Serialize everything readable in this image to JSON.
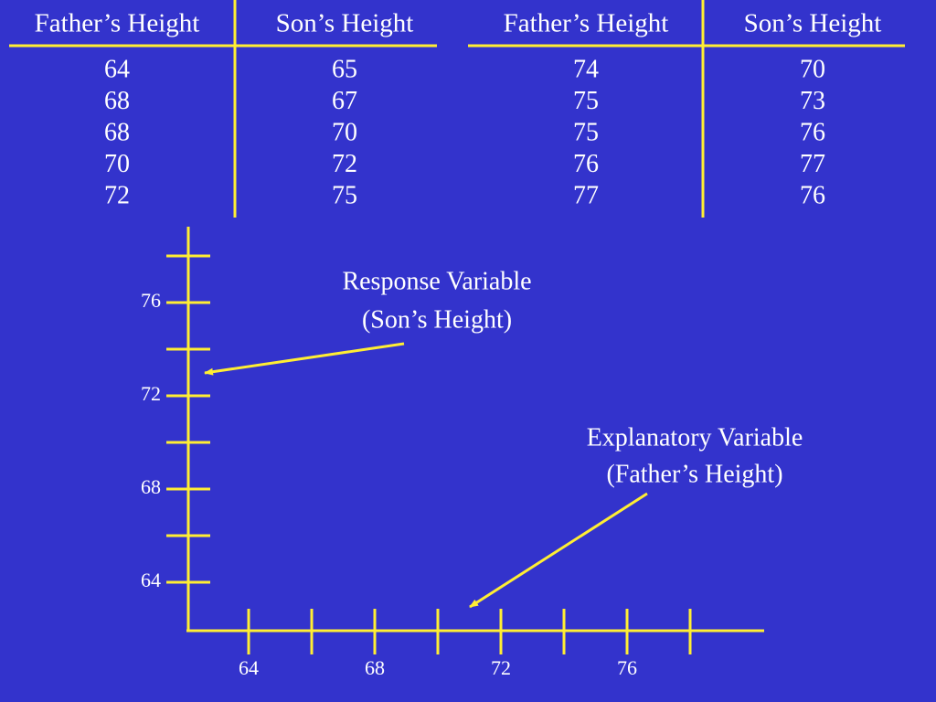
{
  "tables": [
    {
      "headers": [
        "Father’s Height",
        "Son’s Height"
      ],
      "rows": [
        [
          "64",
          "65"
        ],
        [
          "68",
          "67"
        ],
        [
          "68",
          "70"
        ],
        [
          "70",
          "72"
        ],
        [
          "72",
          "75"
        ]
      ]
    },
    {
      "headers": [
        "Father’s Height",
        "Son’s Height"
      ],
      "rows": [
        [
          "74",
          "70"
        ],
        [
          "75",
          "73"
        ],
        [
          "75",
          "76"
        ],
        [
          "76",
          "77"
        ],
        [
          "77",
          "76"
        ]
      ]
    }
  ],
  "annotations": [
    {
      "lines": [
        "Response Variable",
        "(Son’s Height)"
      ]
    },
    {
      "lines": [
        "Explanatory Variable",
        "(Father’s Height)"
      ]
    }
  ],
  "axes": {
    "yticks": [
      64,
      68,
      72,
      76
    ],
    "xticks": [
      64,
      68,
      72,
      76
    ]
  }
}
